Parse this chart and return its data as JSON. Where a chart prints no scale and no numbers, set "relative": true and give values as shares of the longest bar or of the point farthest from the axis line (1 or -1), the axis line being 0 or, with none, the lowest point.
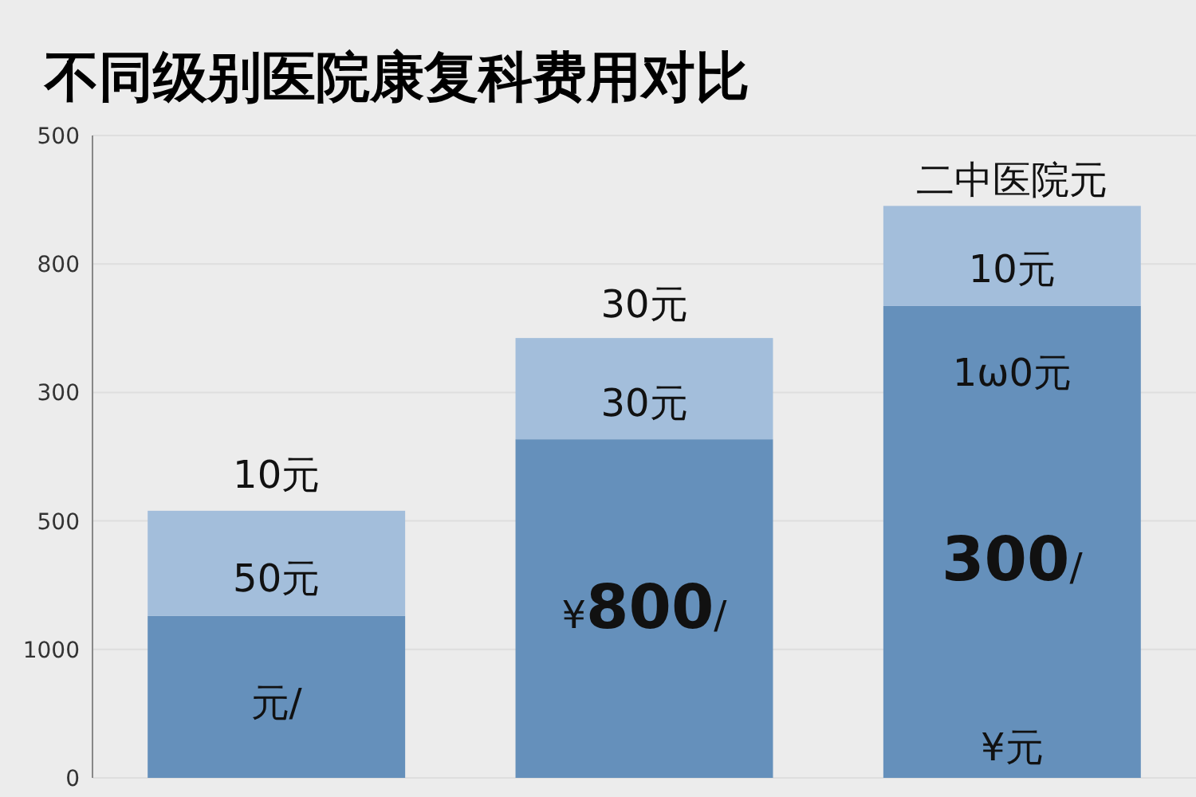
{
  "chart_data": {
    "type": "bar",
    "title": "不同级别医院康复科费用对比",
    "stacked": true,
    "relative": true,
    "categories": [
      null,
      null,
      null
    ],
    "series": [
      {
        "color": "#6590bb",
        "values": [
          0.283,
          0.592,
          0.825
        ]
      },
      {
        "color": "#a3bedb",
        "values": [
          0.184,
          0.177,
          0.175
        ]
      }
    ],
    "annotations": [
      "500",
      "800",
      "300",
      "500",
      "1000",
      "0",
      "10元",
      "50元",
      "元/",
      "30元",
      "30元",
      "¥**800**/",
      "二中医院元",
      "10元",
      "1ω0元",
      "**300**/",
      "¥元"
    ],
    "grid": "y"
  }
}
